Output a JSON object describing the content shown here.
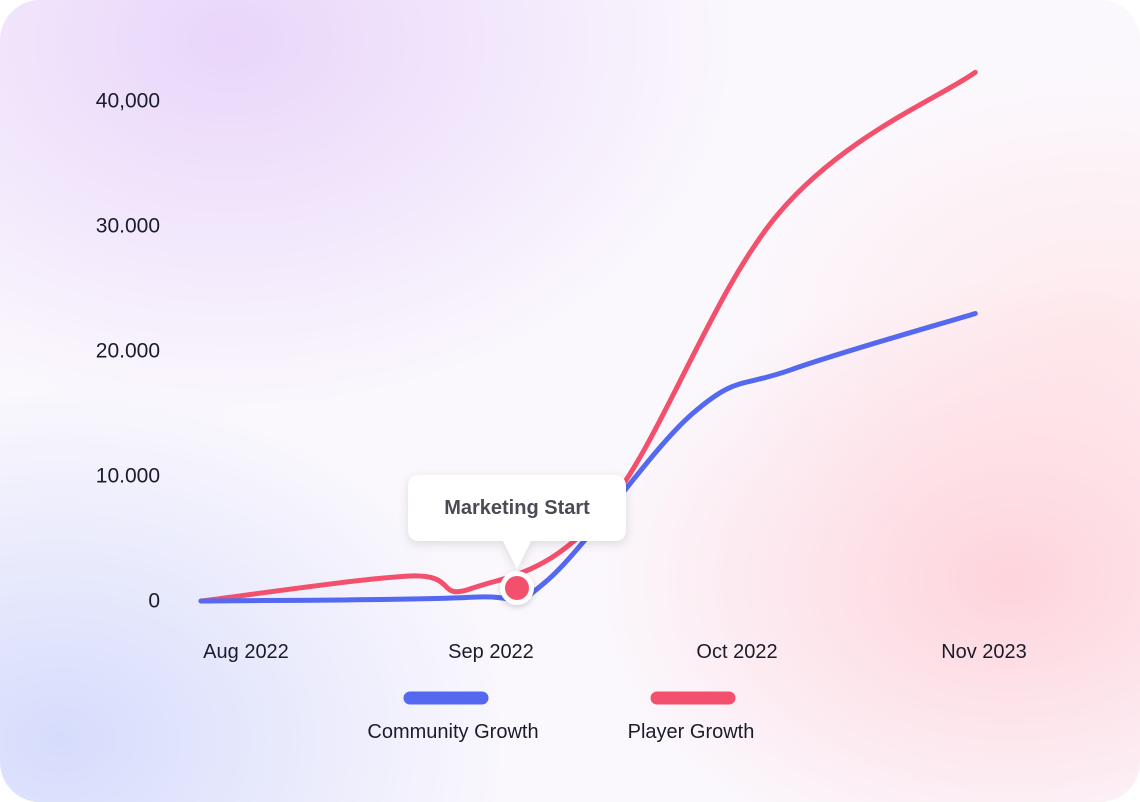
{
  "chart_data": {
    "type": "line",
    "title": "",
    "xlabel": "",
    "ylabel": "",
    "categories": [
      "Aug 2022",
      "Sep 2022",
      "Oct 2022",
      "Nov 2023"
    ],
    "y_ticks": [
      "0",
      "10.000",
      "20.000",
      "30.000",
      "40,000"
    ],
    "ylim": [
      0,
      40000
    ],
    "grid": false,
    "legend_position": "bottom",
    "series": [
      {
        "name": "Community Growth",
        "color": "#5468f0",
        "points": [
          [
            0,
            0
          ],
          [
            1.1,
            300
          ],
          [
            1.4,
            1500
          ],
          [
            2.0,
            15000
          ],
          [
            2.4,
            18500
          ],
          [
            3.15,
            23000
          ]
        ]
      },
      {
        "name": "Player Growth",
        "color": "#f2506c",
        "points": [
          [
            0,
            0
          ],
          [
            0.85,
            2000
          ],
          [
            1.1,
            1000
          ],
          [
            1.65,
            7500
          ],
          [
            2.35,
            31000
          ],
          [
            3.15,
            42300
          ]
        ]
      }
    ],
    "annotation": {
      "label": "Marketing Start",
      "x": 1.1,
      "y": 1000,
      "color": "#f2506c"
    }
  }
}
